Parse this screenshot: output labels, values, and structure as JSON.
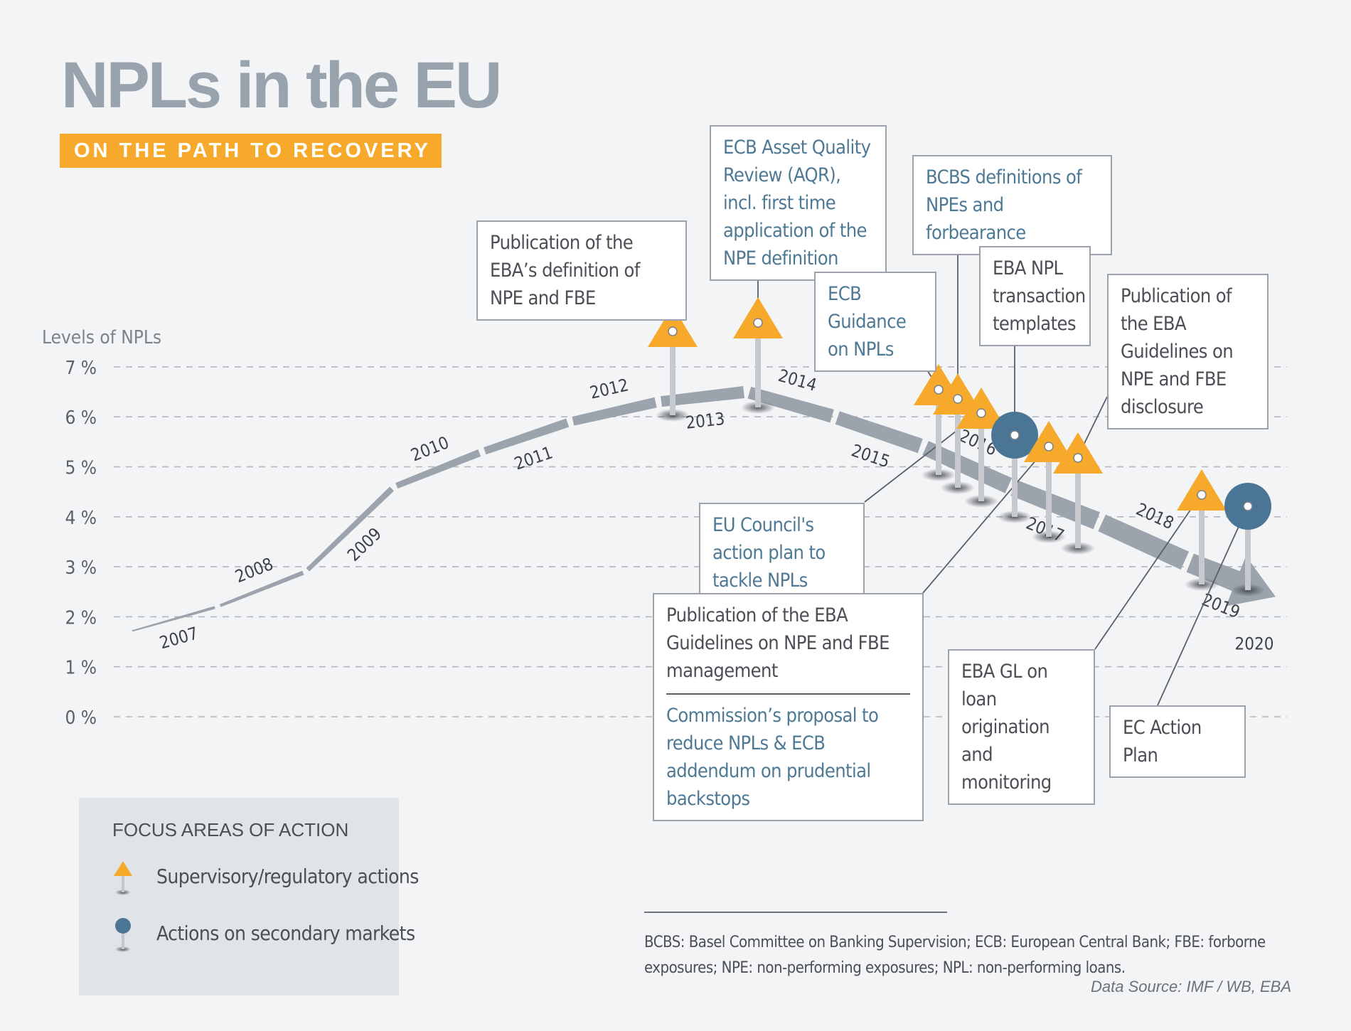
{
  "header": {
    "title": "NPLs in the EU",
    "subtitle": "ON THE PATH TO RECOVERY"
  },
  "chart_data": {
    "type": "line",
    "ylabel": "Levels of NPLs",
    "yticks": [
      "0 %",
      "1 %",
      "2 %",
      "3 %",
      "4 %",
      "5 %",
      "6 %",
      "7 %"
    ],
    "ylim": [
      0,
      7
    ],
    "grid": true,
    "x": [
      "2007",
      "2008",
      "2009",
      "2010",
      "2011",
      "2012",
      "2013",
      "2014",
      "2015",
      "2016",
      "2017",
      "2018",
      "2019",
      "2020"
    ],
    "series": [
      {
        "values": [
          1.7,
          2.2,
          2.9,
          4.6,
          5.3,
          5.9,
          6.3,
          6.5,
          6.0,
          5.4,
          4.6,
          3.9,
          3.1,
          2.4
        ]
      }
    ]
  },
  "events": [
    {
      "label": "Publication of the EBA's definition of NPE and FBE",
      "type": "supervisory",
      "year": "2013"
    },
    {
      "label": "ECB Asset Quality Review (AQR), incl. first time application of the NPE definition",
      "type": "supervisory",
      "year": "2014"
    },
    {
      "label": "ECB Guidance on NPLs",
      "type": "supervisory",
      "year": "2017"
    },
    {
      "label": "BCBS definitions of NPEs and forbearance",
      "type": "supervisory",
      "year": "2017"
    },
    {
      "label": "EU Council's action plan to tackle NPLs",
      "type": "supervisory",
      "year": "2017"
    },
    {
      "label": "EBA NPL transaction templates",
      "type": "secondary markets",
      "year": "2017"
    },
    {
      "label": "Publication of the EBA Guidelines on NPE and FBE management / Commission's proposal to reduce NPLs & ECB addendum on prudential backstops",
      "type": "supervisory",
      "year": "2018"
    },
    {
      "label": "Publication of the EBA Guidelines on NPE and FBE disclosure",
      "type": "supervisory",
      "year": "2018"
    },
    {
      "label": "EBA GL on loan origination and monitoring",
      "type": "supervisory",
      "year": "2020"
    },
    {
      "label": "EC Action Plan",
      "type": "secondary markets",
      "year": "2020"
    }
  ],
  "annotations": {
    "eba_def": "Publication of the EBA’s definition of NPE and FBE",
    "aqr": "ECB Asset Quality Review (AQR), incl. first time application of the NPE definition",
    "bcbs": "BCBS definitions of NPEs and forbearance",
    "ecb_guidance": "ECB Guidance on NPLs",
    "eba_templates": "EBA NPL transaction templates",
    "eba_disclosure": "Publication of the EBA Guidelines on NPE and FBE disclosure",
    "eu_council": "EU Council's action plan to tackle NPLs",
    "eba_management": "Publication of the EBA Guidelines on NPE and FBE management",
    "commission": "Commission’s proposal to reduce NPLs & ECB addendum on prudential backstops",
    "eba_gl": "EBA GL on loan origination and monitoring",
    "ec_plan": "EC Action Plan"
  },
  "legend": {
    "title": "FOCUS AREAS OF ACTION",
    "items": [
      {
        "label": "Supervisory/regulatory actions",
        "icon": "orange-triangle-pin-icon"
      },
      {
        "label": "Actions on secondary markets",
        "icon": "blue-circle-pin-icon"
      }
    ]
  },
  "footnote": {
    "text": "BCBS: Basel Committee on Banking Supervision; ECB: European Central Bank; FBE: forborne exposures; NPE: non-performing exposures; NPL: non-performing loans.",
    "source": "Data Source: IMF / WB, EBA"
  },
  "colors": {
    "supervisory": "#f6a92b",
    "secondary": "#4b7595",
    "path": "#9ba3ad",
    "title": "#99a3ae",
    "background": "#f3f4f6"
  }
}
